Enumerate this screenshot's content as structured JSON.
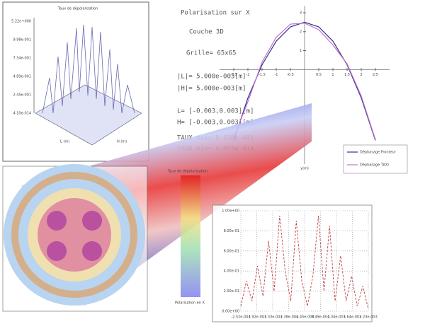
{
  "surface_plot": {
    "title": "Taux de dépolarisation",
    "z_ticks": [
      "5.22e+000",
      "9.98e-001",
      "7.34e-001",
      "4.89e-001",
      "2.45e-001",
      "4.10e-014"
    ],
    "x_label": "L (m)",
    "y_label": "H (m)"
  },
  "parameters": [
    "Polarisation sur X",
    "Couche 3D",
    "Grille= 65x65",
    "|L|= 5.000e-003[m]",
    "|H|= 5.000e-003[m]",
    "L= [-0.003,0.003][m]",
    "H= [-0.003,0.003][m]",
    "TAUX max= 9.938e-001",
    "TAUX min= 4.095e-014"
  ],
  "phase_plot": {
    "x_label": "y(m)",
    "x": [
      -2.5,
      -2,
      -1.5,
      -1,
      -0.5,
      0,
      0.5,
      1,
      1.5,
      2,
      2.5
    ],
    "series": [
      {
        "name": "Déphasage Fronteur",
        "color": "#34348a",
        "values": [
          -3.75,
          -1.5,
          0.25,
          1.5,
          2.25,
          2.5,
          2.25,
          1.5,
          0.25,
          -1.5,
          -3.75
        ]
      },
      {
        "name": "Déphasage TAXI",
        "color": "#c070d0",
        "values": [
          -3.6,
          -1.7,
          0.4,
          1.7,
          2.4,
          2.45,
          2.1,
          1.3,
          0.3,
          -1.4,
          -3.7
        ]
      }
    ],
    "xlim": [
      -3,
      3
    ],
    "ylim": [
      -5,
      3.3
    ],
    "xticks": [
      -2.5,
      -2,
      -1.5,
      -1,
      -0.5,
      0.5,
      1,
      1.5,
      2,
      2.5
    ],
    "yticks": [
      1,
      2,
      3
    ]
  },
  "colorbar": {
    "title": "Taux de dépolarisation",
    "label": "Polarisation en X"
  },
  "profile_plot": {
    "yticks": [
      "1.00e+00",
      "8.00e-01",
      "6.00e-01",
      "4.00e-01",
      "2.00e-01",
      "0.00e+00"
    ],
    "xticks": [
      "-2.52e-003",
      "-1.92e-003",
      "-1.33e-003",
      "-7.38e-004",
      "-1.45e-004",
      "4.49e-004",
      "1.04e-003",
      "1.64e-003",
      "2.23e-003"
    ],
    "values": [
      0.05,
      0.3,
      0.1,
      0.45,
      0.15,
      0.7,
      0.2,
      0.95,
      0.4,
      0.1,
      0.9,
      0.3,
      0.05,
      0.35,
      0.95,
      0.2,
      0.85,
      0.1,
      0.55,
      0.1,
      0.35,
      0.05,
      0.25,
      0.02
    ]
  }
}
